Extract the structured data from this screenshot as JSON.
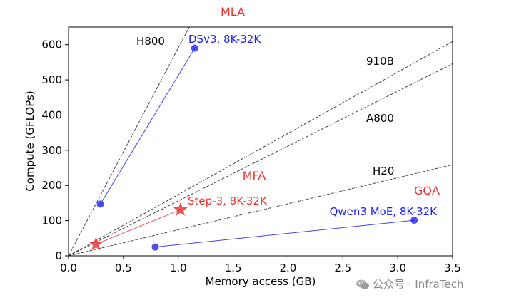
{
  "chart_data": {
    "type": "scatter",
    "xlabel": "Memory access (GB)",
    "ylabel": "Compute (GFLOPs)",
    "xlim": [
      0.0,
      3.5
    ],
    "ylim": [
      0,
      650
    ],
    "xticks": [
      0.0,
      0.5,
      1.0,
      1.5,
      2.0,
      2.5,
      3.0,
      3.5
    ],
    "yticks": [
      0,
      100,
      200,
      300,
      400,
      500,
      600
    ],
    "xtick_labels": [
      "0.0",
      "0.5",
      "1.0",
      "1.5",
      "2.0",
      "2.5",
      "3.0",
      "3.5"
    ],
    "ytick_labels": [
      "0",
      "100",
      "200",
      "300",
      "400",
      "500",
      "600"
    ],
    "grid": false,
    "rooflines": [
      {
        "name": "H800",
        "slope": 591
      },
      {
        "name": "910B",
        "slope": 174
      },
      {
        "name": "A800",
        "slope": 156
      },
      {
        "name": "H20",
        "slope": 74
      }
    ],
    "series": [
      {
        "name": "DSv3, 8K-32K",
        "group": "MLA",
        "color": "#2222ee",
        "marker": "circle",
        "points": [
          [
            0.29,
            147
          ],
          [
            1.15,
            590
          ]
        ]
      },
      {
        "name": "Step-3, 8K-32K",
        "group": "MFA",
        "color": "#ee3333",
        "marker": "star",
        "points": [
          [
            0.25,
            33
          ],
          [
            1.02,
            131
          ]
        ]
      },
      {
        "name": "Qwen3 MoE, 8K-32K",
        "group": "GQA",
        "color": "#2222ee",
        "marker": "circle",
        "points": [
          [
            0.79,
            25
          ],
          [
            3.15,
            101
          ]
        ]
      }
    ],
    "groups": [
      {
        "name": "MLA",
        "color": "#ee3333"
      },
      {
        "name": "MFA",
        "color": "#ee3333"
      },
      {
        "name": "GQA",
        "color": "#ee3333"
      }
    ]
  },
  "watermark": {
    "text": "公众号 · InfraTech",
    "color": "#8a8a8a"
  }
}
